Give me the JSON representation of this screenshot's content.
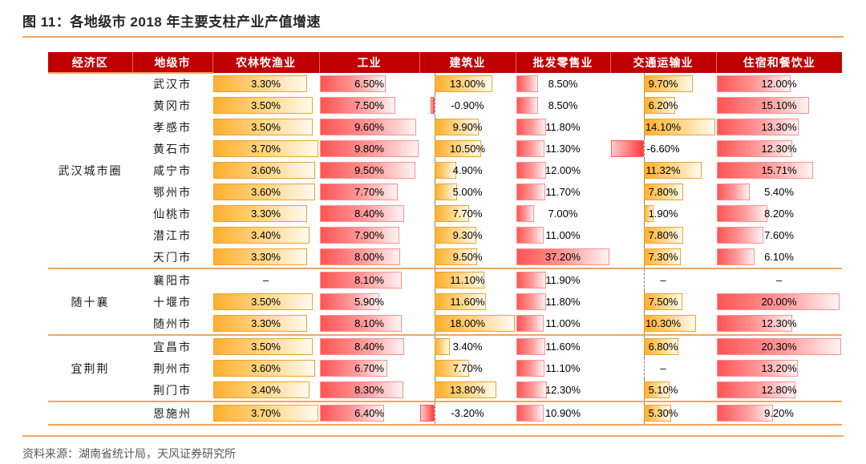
{
  "title": "图 11：各地级市 2018 年主要支柱产业产值增速",
  "source": "资料来源：湖南省统计局，天风证券研究所",
  "colors": {
    "header_bg": "#c00000",
    "header_text": "#ffffff",
    "orange_bar": "#ffaf2e",
    "red_bar": "#ff5454",
    "negative_bar": "#ff3d3d",
    "rule_orange": "#f2a45f",
    "source_text": "#595959"
  },
  "chart_data": {
    "type": "table",
    "title": "图 11：各地级市 2018 年主要支柱产业产值增速",
    "unit": "%",
    "grid": false,
    "legend_position": "none",
    "null_display": "–",
    "key_columns": [
      "经济区",
      "地级市"
    ],
    "value_columns": [
      {
        "label": "农林牧渔业",
        "bar_style": "orange",
        "scale_min": 0,
        "scale_max": 3.7
      },
      {
        "label": "工业",
        "bar_style": "red",
        "scale_min": 0,
        "scale_max": 9.8
      },
      {
        "label": "建筑业",
        "bar_style": "orange",
        "scale_min": -3.2,
        "scale_max": 18.0
      },
      {
        "label": "批发零售业",
        "bar_style": "red",
        "scale_min": 0,
        "scale_max": 37.2
      },
      {
        "label": "交通运输业",
        "bar_style": "orange",
        "scale_min": -6.6,
        "scale_max": 14.1
      },
      {
        "label": "住宿和餐饮业",
        "bar_style": "red",
        "scale_min": 0,
        "scale_max": 20.3
      }
    ],
    "groups": [
      {
        "region": "武汉城市圈",
        "rows": [
          {
            "city": "武汉市",
            "values": [
              3.3,
              6.5,
              13.0,
              8.5,
              9.7,
              12.0
            ]
          },
          {
            "city": "黄冈市",
            "values": [
              3.5,
              7.5,
              -0.9,
              8.5,
              6.2,
              15.1
            ]
          },
          {
            "city": "孝感市",
            "values": [
              3.5,
              9.6,
              9.9,
              11.8,
              14.1,
              13.3
            ]
          },
          {
            "city": "黄石市",
            "values": [
              3.7,
              9.8,
              10.5,
              11.3,
              -6.6,
              12.3
            ]
          },
          {
            "city": "咸宁市",
            "values": [
              3.6,
              9.5,
              4.9,
              12.0,
              11.32,
              15.71
            ]
          },
          {
            "city": "鄂州市",
            "values": [
              3.6,
              7.7,
              5.0,
              11.7,
              7.8,
              5.4
            ]
          },
          {
            "city": "仙桃市",
            "values": [
              3.3,
              8.4,
              7.7,
              7.0,
              1.9,
              8.2
            ]
          },
          {
            "city": "潜江市",
            "values": [
              3.4,
              7.9,
              9.3,
              11.0,
              7.8,
              7.6
            ]
          },
          {
            "city": "天门市",
            "values": [
              3.3,
              8.0,
              9.5,
              37.2,
              7.3,
              6.1
            ]
          }
        ]
      },
      {
        "region": "随十襄",
        "rows": [
          {
            "city": "襄阳市",
            "values": [
              null,
              8.1,
              11.1,
              11.9,
              null,
              null
            ]
          },
          {
            "city": "十堰市",
            "values": [
              3.5,
              5.9,
              11.6,
              11.8,
              7.5,
              20.0
            ]
          },
          {
            "city": "随州市",
            "values": [
              3.3,
              8.1,
              18.0,
              11.0,
              10.3,
              12.3
            ]
          }
        ]
      },
      {
        "region": "宜荆荆",
        "rows": [
          {
            "city": "宜昌市",
            "values": [
              3.5,
              8.4,
              3.4,
              11.6,
              6.8,
              20.3
            ]
          },
          {
            "city": "荆州市",
            "values": [
              3.6,
              6.7,
              7.7,
              11.1,
              null,
              13.2
            ]
          },
          {
            "city": "荆门市",
            "values": [
              3.4,
              8.3,
              13.8,
              12.3,
              5.1,
              12.8
            ]
          }
        ]
      },
      {
        "region": "",
        "rows": [
          {
            "city": "恩施州",
            "values": [
              3.7,
              6.4,
              -3.2,
              10.9,
              5.3,
              9.2
            ]
          }
        ]
      }
    ]
  }
}
